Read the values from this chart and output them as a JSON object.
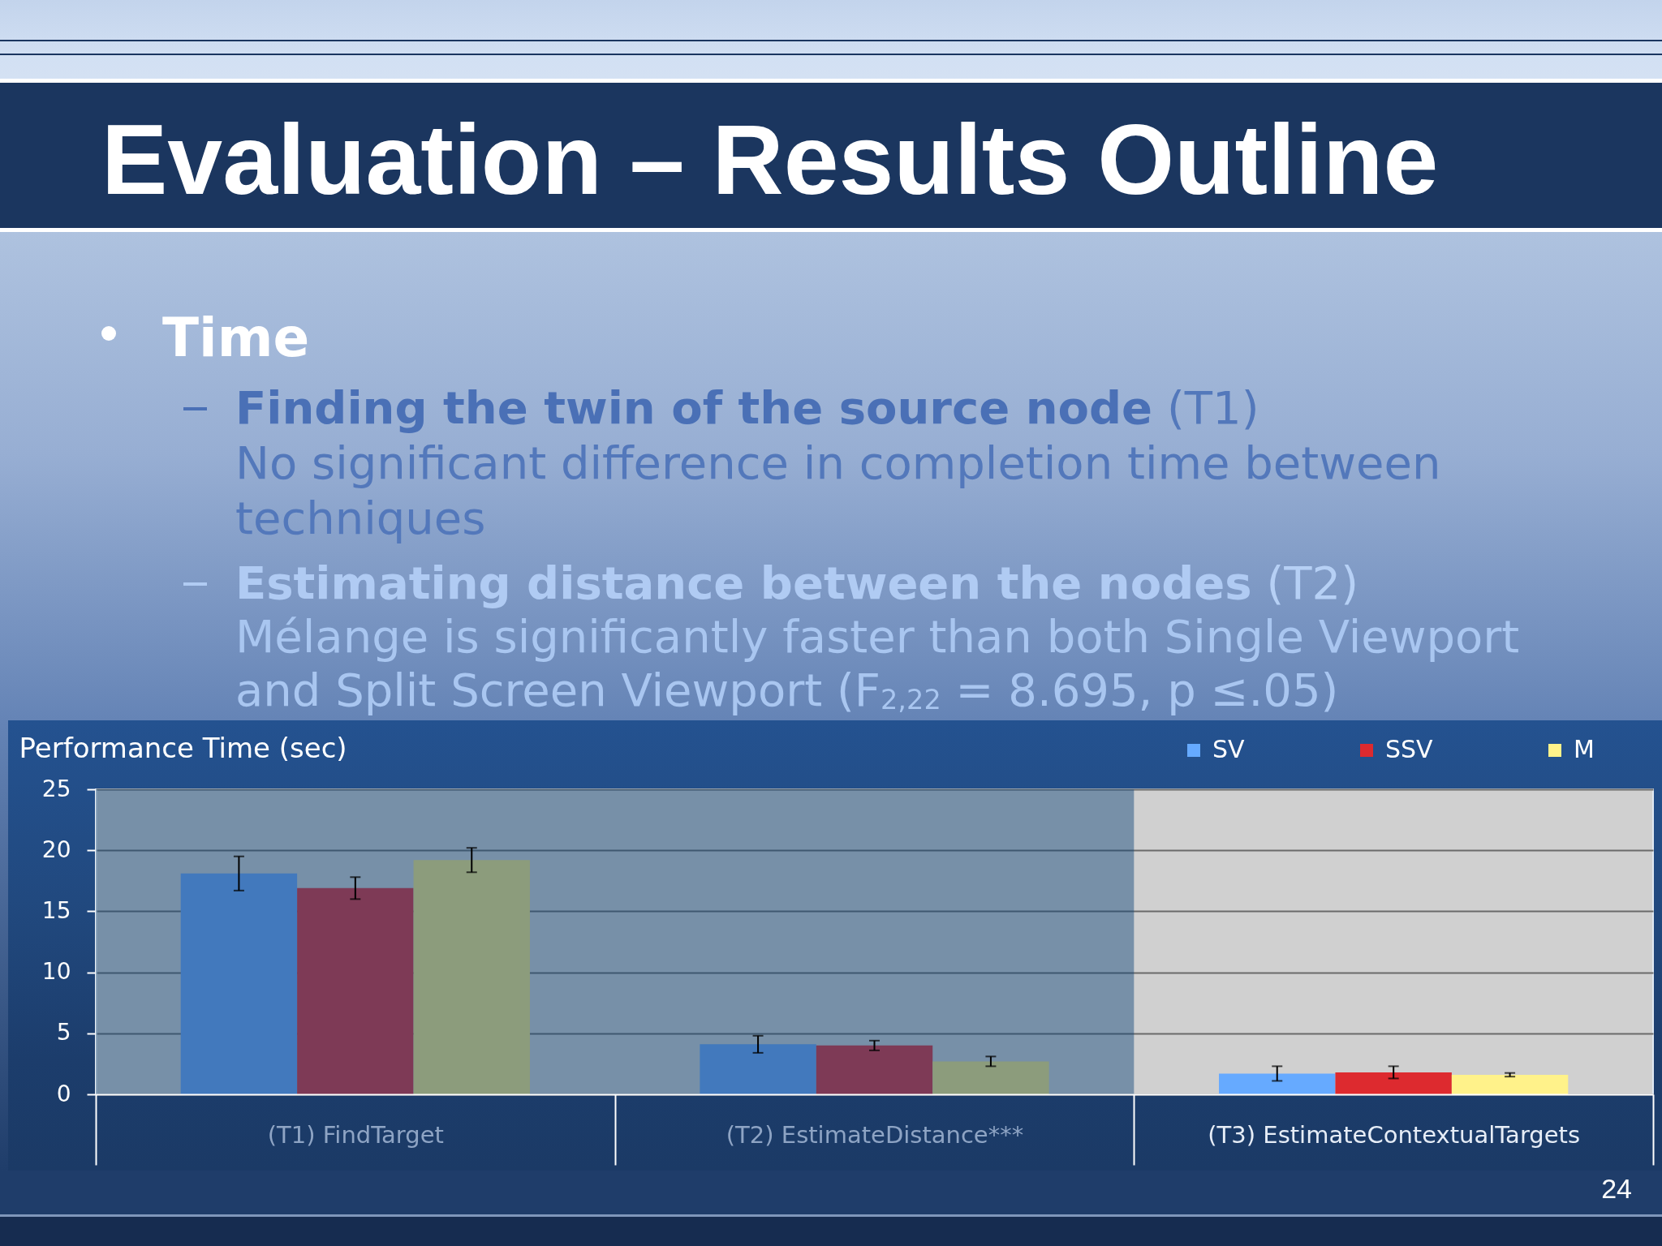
{
  "chart_data": {
    "type": "bar",
    "title": "Evaluation – Results Outline",
    "ylabel": "Performance Time (sec)",
    "categories": [
      "(T1) FindTarget",
      "(T2) EstimateDistance***",
      "(T3) EstimateContextualTargets"
    ],
    "series": [
      {
        "name": "SV",
        "color": "#66aaff",
        "colors": [
          "#4279bd",
          "#4279bd",
          "#66aaff"
        ],
        "values": [
          18.1,
          4.1,
          1.7
        ],
        "errors": [
          1.4,
          0.7,
          0.6
        ]
      },
      {
        "name": "SSV",
        "color": "#dd2a2f",
        "colors": [
          "#7e3a56",
          "#7e3a56",
          "#dd2a2f"
        ],
        "values": [
          16.9,
          4.0,
          1.8
        ],
        "errors": [
          0.9,
          0.4,
          0.5
        ]
      },
      {
        "name": "M",
        "color": "#fff28a",
        "colors": [
          "#8c9c7c",
          "#8c9c7c",
          "#fff28a"
        ],
        "values": [
          19.2,
          2.7,
          1.6
        ],
        "errors": [
          1.0,
          0.4,
          0.15
        ]
      }
    ],
    "ylim": [
      0,
      25
    ],
    "yticks": [
      0,
      5,
      10,
      15,
      20,
      25
    ],
    "grid": "y",
    "legend": "top right",
    "bands": [
      {
        "axis": "x",
        "from": "(T1) FindTarget",
        "to": "(T2) EstimateDistance***"
      }
    ],
    "annotations": [
      "Time",
      "Finding the twin of the source node",
      "(T1)",
      "No significant difference in completion time between techniques",
      "Estimating distance between the nodes",
      "(T2)",
      "Mélange is significantly faster than both Single Viewport and Split Screen Viewport (F$_{2,22}$ = 8.695, p ≤.05)",
      "24"
    ]
  }
}
